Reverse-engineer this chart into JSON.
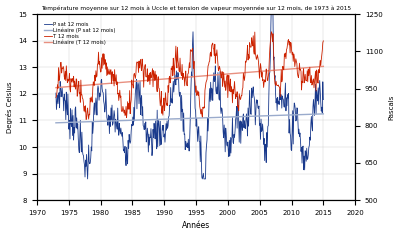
{
  "title": "Température moyenne sur 12 mois à Uccle et tension de vapeur moyennée sur 12 mois, de 1973 à 2015",
  "xlabel": "Années",
  "ylabel_left": "Degrés Celsius",
  "ylabel_right": "Pascals",
  "xlim": [
    1970,
    2020
  ],
  "ylim_left": [
    8,
    15
  ],
  "ylim_right": [
    500,
    1250
  ],
  "yticks_left": [
    8,
    9,
    10,
    11,
    12,
    13,
    14,
    15
  ],
  "yticks_right": [
    500,
    650,
    800,
    950,
    1100,
    1250
  ],
  "xticks": [
    1970,
    1975,
    1980,
    1985,
    1990,
    1995,
    2000,
    2005,
    2010,
    2015,
    2020
  ],
  "legend_labels": [
    "P sat 12 mois",
    "Linéaire (P sat 12 mois)",
    "T 12 mois",
    "Linéaire (T 12 mois)"
  ],
  "color_blue": "#1a3a8c",
  "color_blue_light": "#9aabcc",
  "color_red": "#cc2200",
  "color_red_light": "#e89080",
  "figsize": [
    4.0,
    2.36
  ],
  "dpi": 100,
  "background": "#f8f8f8"
}
